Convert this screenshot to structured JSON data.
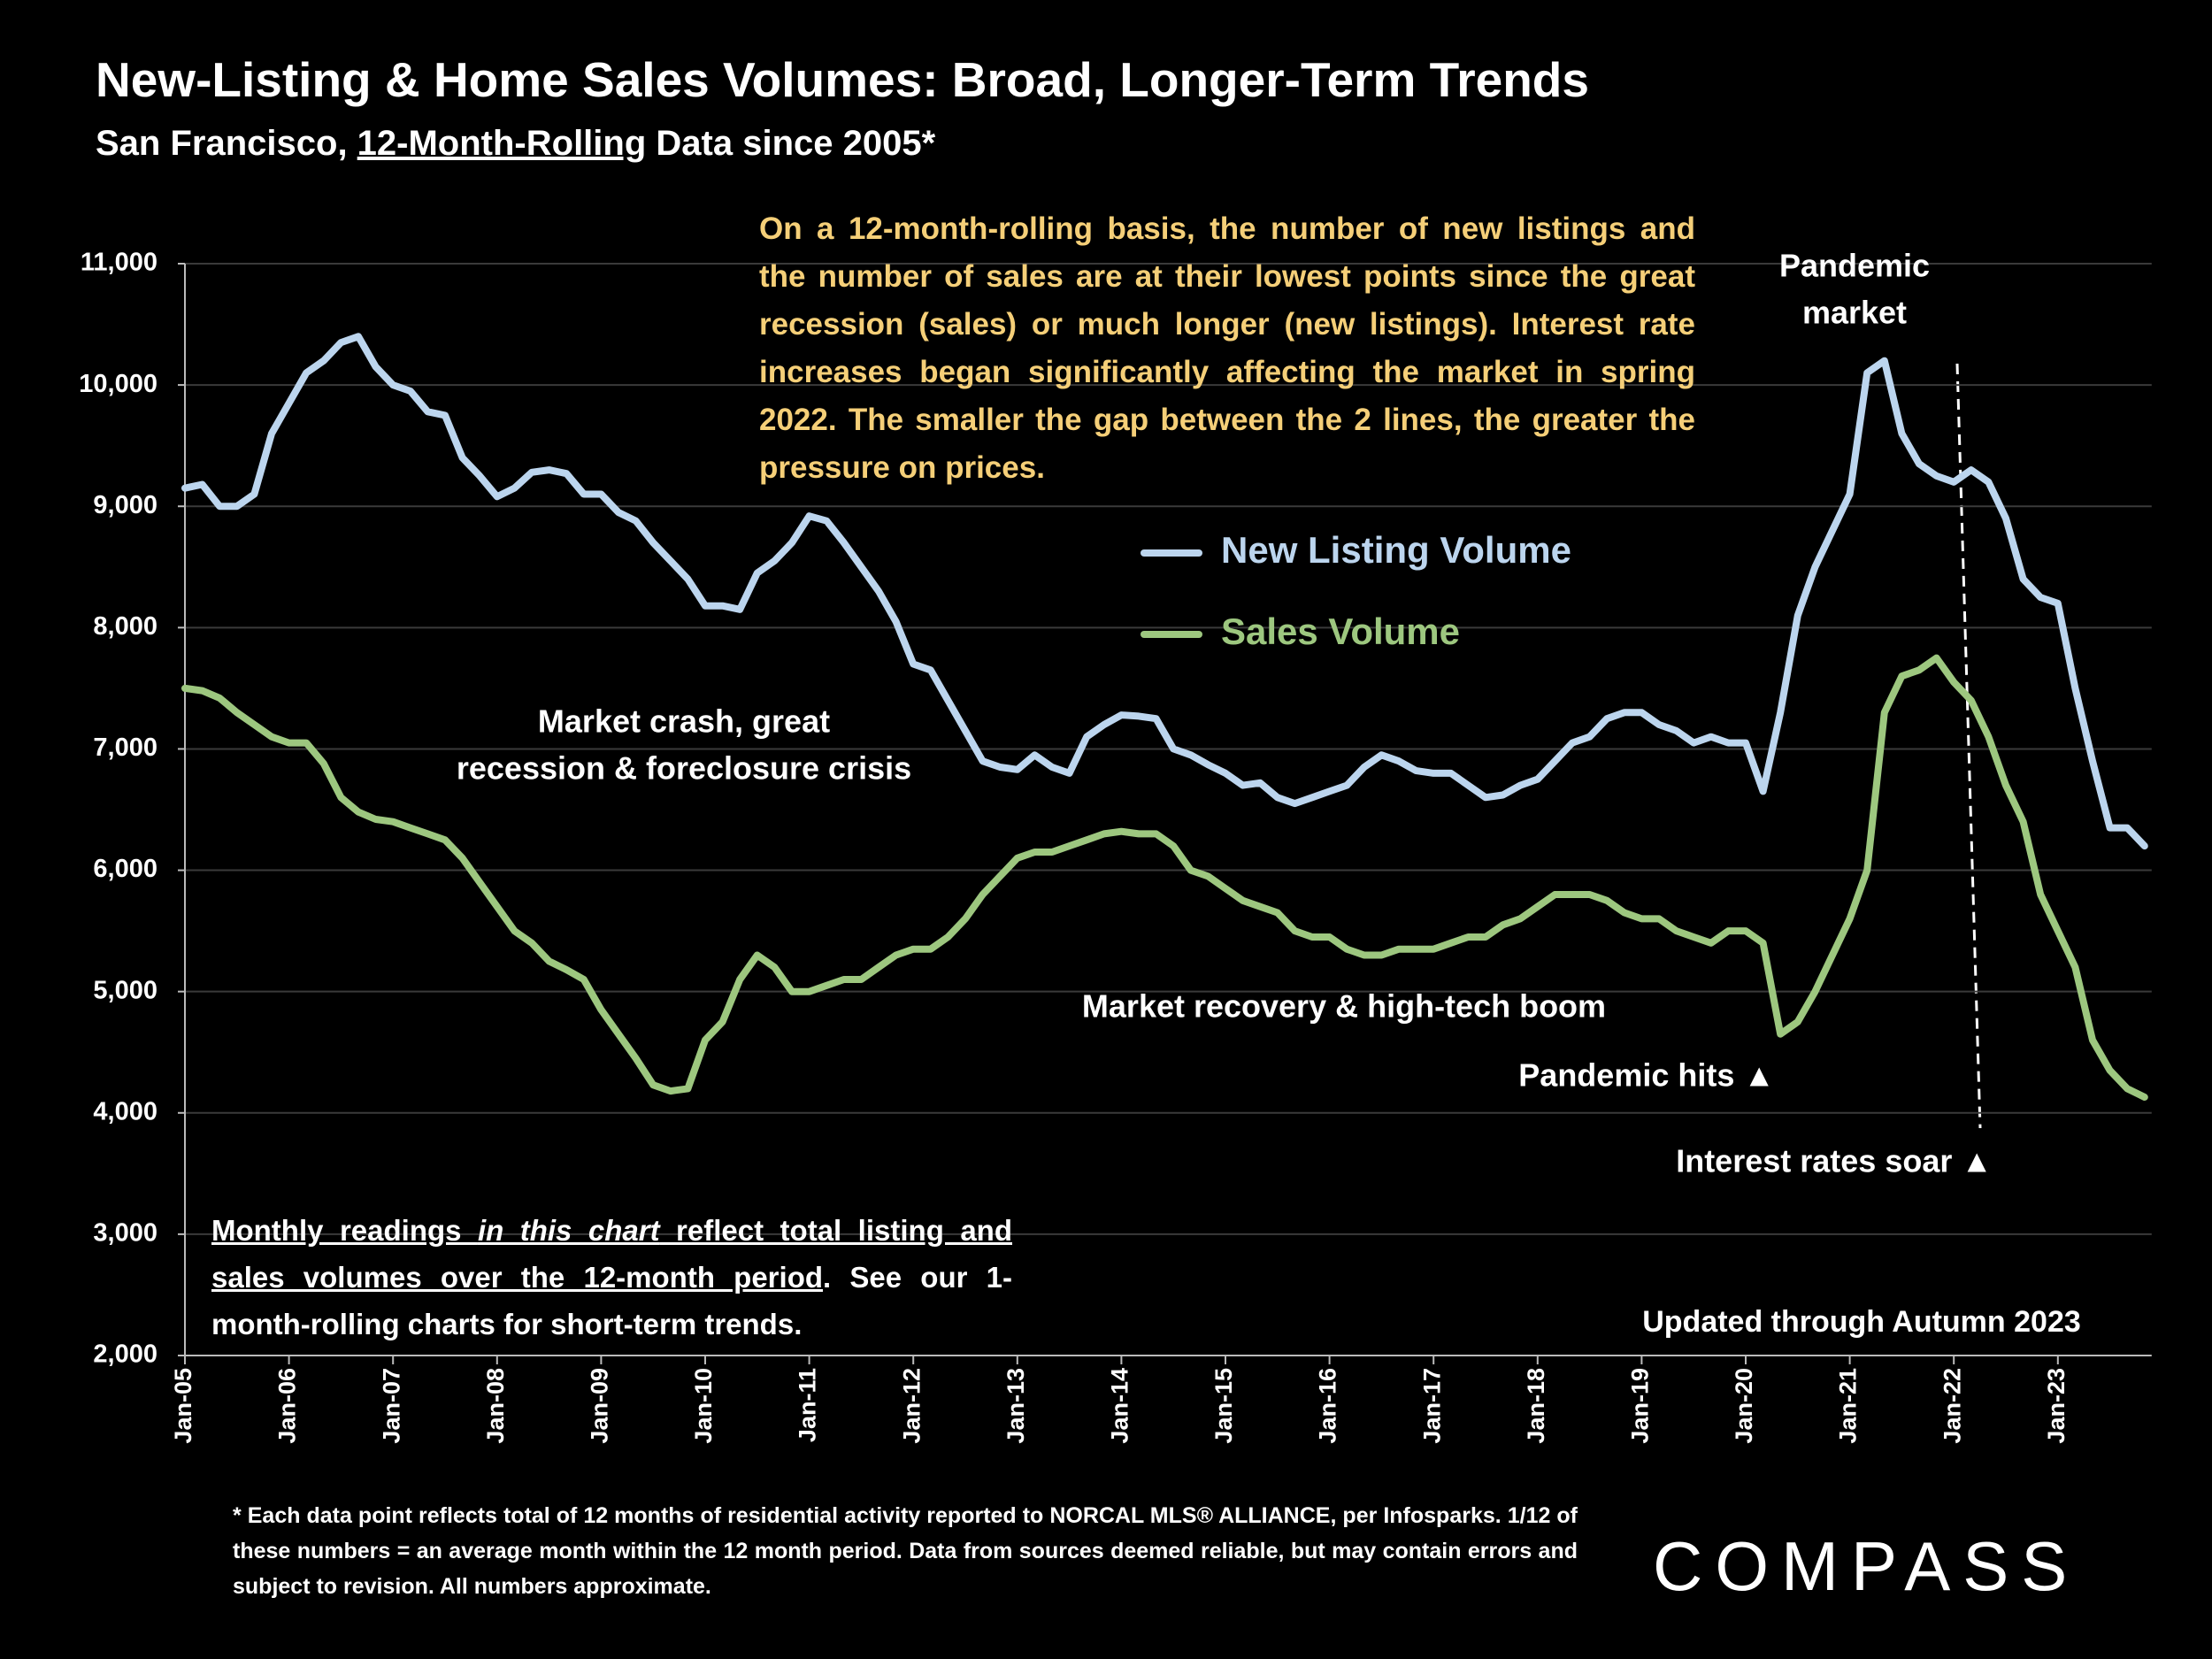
{
  "chart_data": {
    "type": "line",
    "title": "New-Listing & Home Sales Volumes: Broad, Longer-Term Trends",
    "subtitle_parts": [
      "San Francisco, ",
      "12-Month-Rolling",
      " Data since 2005*"
    ],
    "categories": [
      "Jan-05",
      null,
      null,
      null,
      null,
      null,
      "Jan-06",
      null,
      null,
      null,
      null,
      null,
      "Jan-07",
      null,
      null,
      null,
      null,
      null,
      "Jan-08",
      null,
      null,
      null,
      null,
      null,
      "Jan-09",
      null,
      null,
      null,
      null,
      null,
      "Jan-10",
      null,
      null,
      null,
      null,
      null,
      "Jan-11",
      null,
      null,
      null,
      null,
      null,
      "Jan-12",
      null,
      null,
      null,
      null,
      null,
      "Jan-13",
      null,
      null,
      null,
      null,
      null,
      "Jan-14",
      null,
      null,
      null,
      null,
      null,
      "Jan-15",
      null,
      null,
      null,
      null,
      null,
      "Jan-16",
      null,
      null,
      null,
      null,
      null,
      "Jan-17",
      null,
      null,
      null,
      null,
      null,
      "Jan-18",
      null,
      null,
      null,
      null,
      null,
      "Jan-19",
      null,
      null,
      null,
      null,
      null,
      "Jan-20",
      null,
      null,
      null,
      null,
      null,
      "Jan-21",
      null,
      null,
      null,
      null,
      null,
      "Jan-22",
      null,
      null,
      null,
      null,
      null,
      "Jan-23",
      null,
      null,
      null,
      null,
      null
    ],
    "series": [
      {
        "name": "New Listing Volume",
        "color": "#bcd5ee",
        "values": [
          9150,
          9180,
          9000,
          9000,
          9100,
          9600,
          9850,
          10100,
          10200,
          10350,
          10400,
          10150,
          10000,
          9950,
          9780,
          9750,
          9400,
          9250,
          9080,
          9150,
          9280,
          9300,
          9270,
          9100,
          9100,
          8950,
          8880,
          8700,
          8550,
          8400,
          8180,
          8180,
          8150,
          8450,
          8550,
          8700,
          8920,
          8880,
          8700,
          8500,
          8300,
          8050,
          7700,
          7650,
          7400,
          7150,
          6900,
          6850,
          6830,
          6950,
          6850,
          6800,
          7100,
          7200,
          7280,
          7270,
          7250,
          7000,
          6950,
          6870,
          6800,
          6700,
          6720,
          6600,
          6550,
          6600,
          6650,
          6700,
          6850,
          6950,
          6900,
          6820,
          6800,
          6800,
          6700,
          6600,
          6620,
          6700,
          6750,
          6900,
          7050,
          7100,
          7250,
          7300,
          7300,
          7200,
          7150,
          7050,
          7100,
          7050,
          7050,
          6650,
          7300,
          8100,
          8500,
          8800,
          9100,
          10100,
          10200,
          9600,
          9350,
          9250,
          9200,
          9300,
          9200,
          8900,
          8400,
          8250,
          8200,
          7500,
          6900,
          6350,
          6350,
          6200
        ]
      },
      {
        "name": "Sales Volume",
        "color": "#9dc77f",
        "values": [
          7500,
          7480,
          7420,
          7300,
          7200,
          7100,
          7050,
          7050,
          6880,
          6600,
          6480,
          6420,
          6400,
          6350,
          6300,
          6250,
          6100,
          5900,
          5700,
          5500,
          5400,
          5250,
          5180,
          5100,
          4850,
          4650,
          4450,
          4230,
          4180,
          4200,
          4600,
          4750,
          5100,
          5300,
          5200,
          5000,
          5000,
          5050,
          5100,
          5100,
          5200,
          5300,
          5350,
          5350,
          5450,
          5600,
          5800,
          5950,
          6100,
          6150,
          6150,
          6200,
          6250,
          6300,
          6320,
          6300,
          6300,
          6200,
          6000,
          5950,
          5850,
          5750,
          5700,
          5650,
          5500,
          5450,
          5450,
          5350,
          5300,
          5300,
          5350,
          5350,
          5350,
          5400,
          5450,
          5450,
          5550,
          5600,
          5700,
          5800,
          5800,
          5800,
          5750,
          5650,
          5600,
          5600,
          5500,
          5450,
          5400,
          5500,
          5500,
          5400,
          4650,
          4750,
          5000,
          5300,
          5600,
          6000,
          7300,
          7600,
          7650,
          7750,
          7550,
          7400,
          7100,
          6700,
          6400,
          5800,
          5500,
          5200,
          4600,
          4350,
          4200,
          4130
        ]
      }
    ],
    "ylim": [
      2000,
      11000
    ],
    "yticks": [
      {
        "value": 2000,
        "label": "2,000"
      },
      {
        "value": 3000,
        "label": "3,000"
      },
      {
        "value": 4000,
        "label": "4,000"
      },
      {
        "value": 5000,
        "label": "5,000"
      },
      {
        "value": 6000,
        "label": "6,000"
      },
      {
        "value": 7000,
        "label": "7,000"
      },
      {
        "value": 8000,
        "label": "8,000"
      },
      {
        "value": 9000,
        "label": "9,000"
      },
      {
        "value": 10000,
        "label": "10,000"
      },
      {
        "value": 11000,
        "label": "11,000"
      }
    ],
    "grid": true,
    "commentary": "On a 12-month-rolling basis, the number of new listings and the number of sales are at their lowest points since the great recession (sales) or much longer (new listings). Interest rate increases began significantly affecting the market in spring 2022. The smaller the gap between the 2 lines, the greater the pressure on prices.",
    "annotations": {
      "pandemic_market": [
        "Pandemic",
        "market"
      ],
      "crash": [
        "Market crash,  great",
        "recession & foreclosure crisis"
      ],
      "recovery": "Market recovery & high-tech boom",
      "pandemic_hits": "Pandemic hits ▲",
      "rates_soar": "Interest rates soar ▲",
      "updated": "Updated through Autumn 2023"
    },
    "note": [
      "Monthly readings ",
      "in this chart",
      " reflect total listing and sales volumes over the 12-month period",
      ". See our 1-month-rolling charts for short-term trends."
    ],
    "footnote": "* Each data point reflects total of 12 months of residential activity reported to NORCAL MLS® ALLIANCE, per Infosparks. 1/12 of these numbers = an average month within the 12 month period. Data from sources deemed reliable, but may contain errors and subject to revision. All numbers approximate.",
    "logo": "COMPASS"
  }
}
